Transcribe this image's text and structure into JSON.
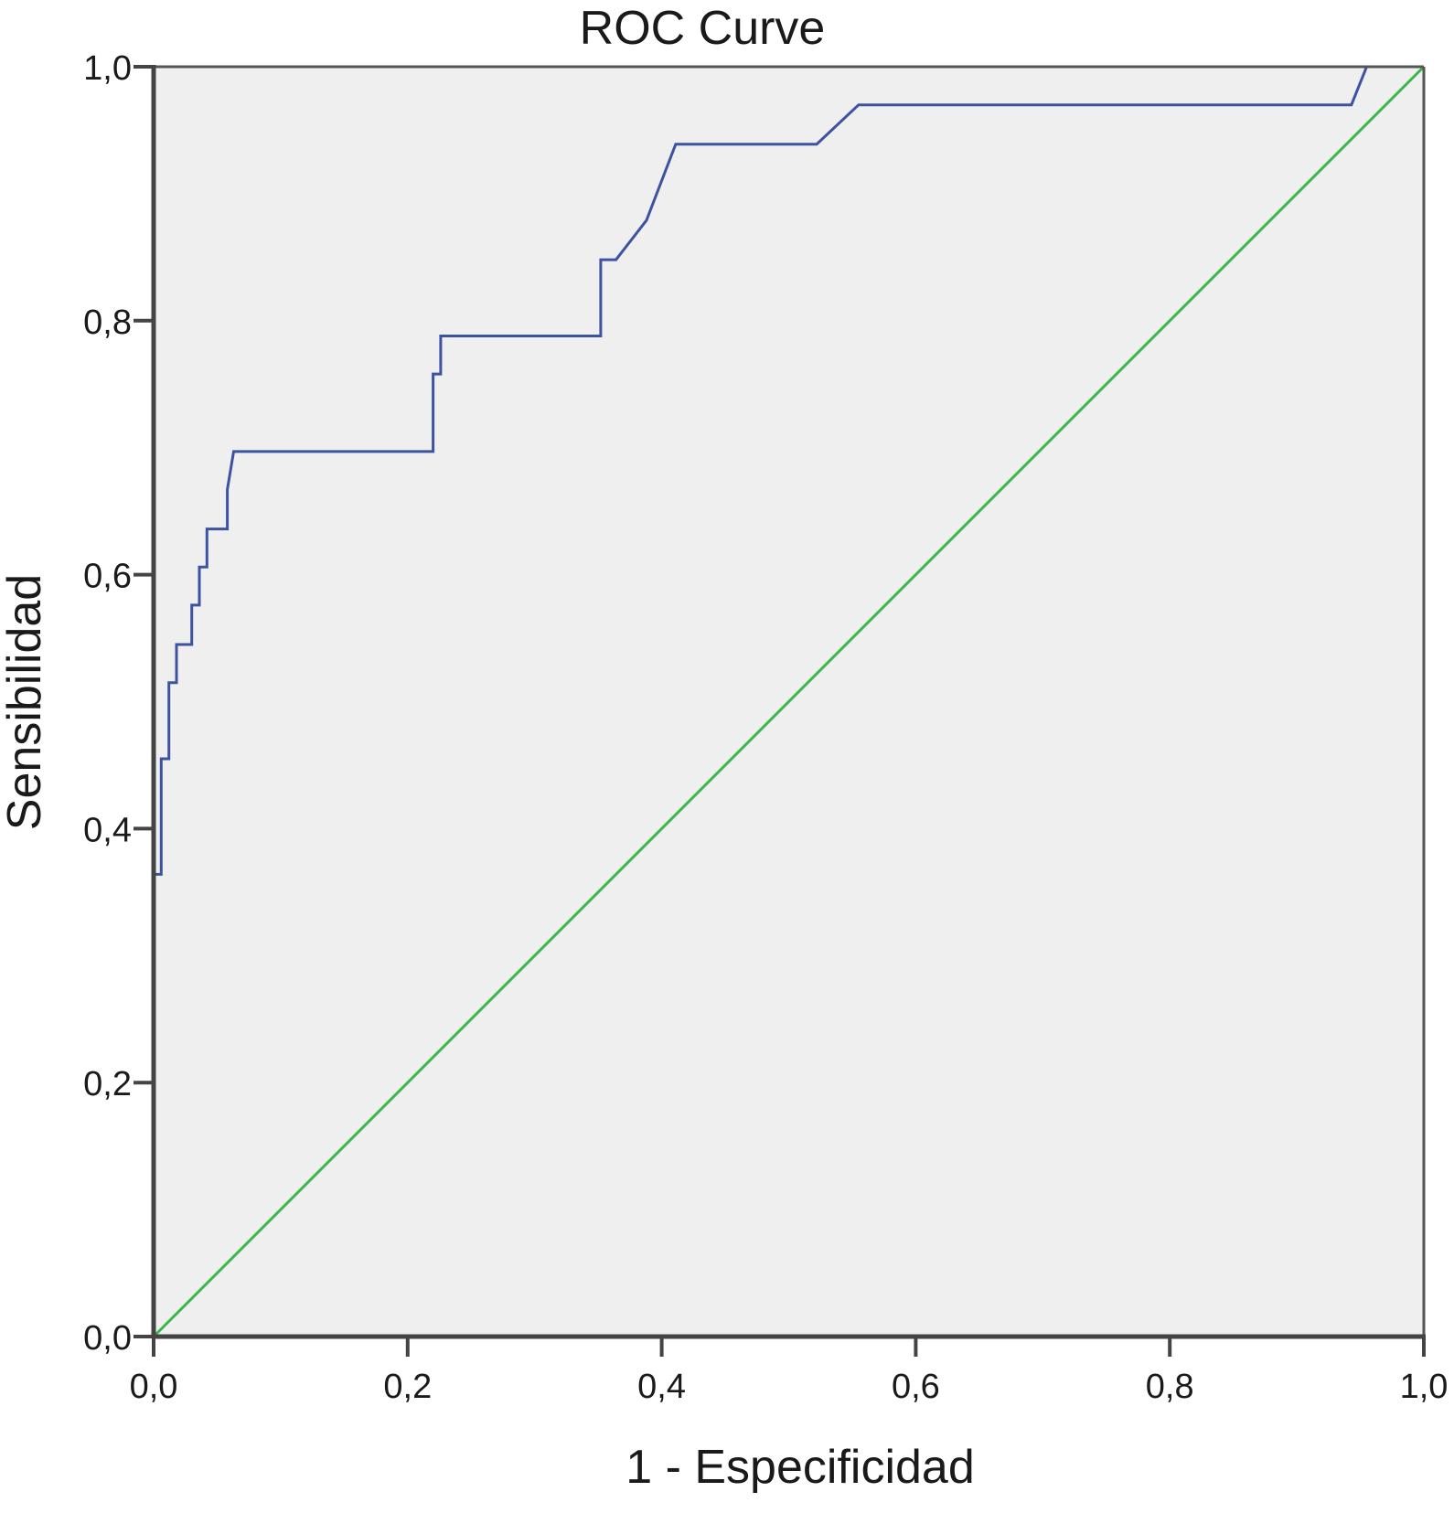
{
  "chart_data": {
    "type": "line",
    "title": "ROC Curve",
    "xlabel": "1 - Especificidad",
    "ylabel": "Sensibilidad",
    "xlim": [
      0,
      1
    ],
    "ylim": [
      0,
      1
    ],
    "x_ticks": [
      "0,0",
      "0,2",
      "0,4",
      "0,6",
      "0,8",
      "1,0"
    ],
    "y_ticks": [
      "0,0",
      "0,2",
      "0,4",
      "0,6",
      "0,8",
      "1,0"
    ],
    "grid": false,
    "plot_background": "#efefef",
    "series": [
      {
        "color": "#3d53a0",
        "points": [
          [
            0.0,
            0.0
          ],
          [
            0.0,
            0.364
          ],
          [
            0.006,
            0.364
          ],
          [
            0.006,
            0.455
          ],
          [
            0.012,
            0.455
          ],
          [
            0.012,
            0.515
          ],
          [
            0.018,
            0.515
          ],
          [
            0.018,
            0.545
          ],
          [
            0.03,
            0.545
          ],
          [
            0.03,
            0.576
          ],
          [
            0.036,
            0.576
          ],
          [
            0.036,
            0.606
          ],
          [
            0.042,
            0.606
          ],
          [
            0.042,
            0.636
          ],
          [
            0.058,
            0.636
          ],
          [
            0.058,
            0.667
          ],
          [
            0.063,
            0.697
          ],
          [
            0.22,
            0.697
          ],
          [
            0.22,
            0.758
          ],
          [
            0.226,
            0.758
          ],
          [
            0.226,
            0.788
          ],
          [
            0.352,
            0.788
          ],
          [
            0.352,
            0.848
          ],
          [
            0.364,
            0.848
          ],
          [
            0.388,
            0.879
          ],
          [
            0.411,
            0.939
          ],
          [
            0.522,
            0.939
          ],
          [
            0.555,
            0.97
          ],
          [
            0.943,
            0.97
          ],
          [
            0.955,
            1.0
          ],
          [
            1.0,
            1.0
          ]
        ]
      },
      {
        "color": "#3cb54a",
        "points": [
          [
            0,
            0
          ],
          [
            1,
            1
          ]
        ]
      }
    ]
  },
  "colors": {
    "axis": "#444444",
    "frame": "#555555"
  }
}
